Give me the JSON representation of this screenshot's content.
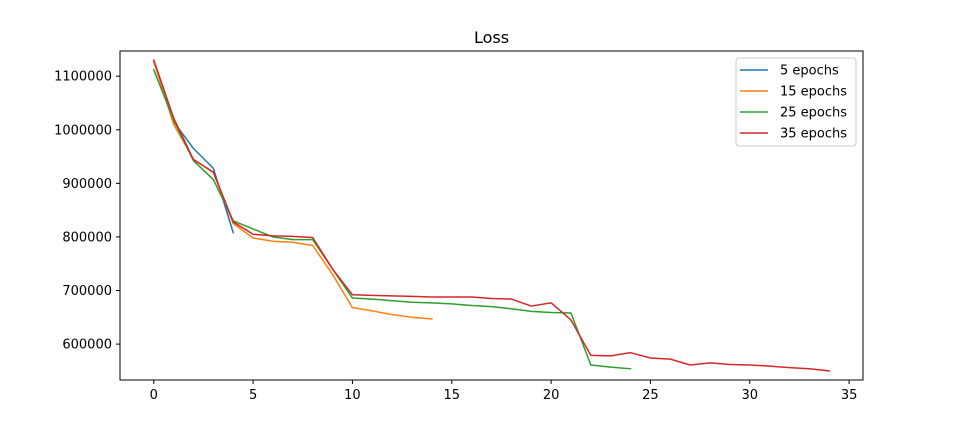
{
  "chart_data": {
    "type": "line",
    "title": "Loss",
    "xlabel": "",
    "ylabel": "",
    "xlim": [
      -1.7,
      35.7
    ],
    "ylim": [
      533000,
      1147000
    ],
    "x_ticks": [
      0,
      5,
      10,
      15,
      20,
      25,
      30,
      35
    ],
    "y_ticks": [
      600000,
      700000,
      800000,
      900000,
      1000000,
      1100000
    ],
    "grid": false,
    "legend_position": "top-right",
    "series": [
      {
        "name": "5 epochs",
        "color": "#1f77b4",
        "x": [
          0,
          1,
          2,
          3,
          4
        ],
        "values": [
          1128000,
          1015000,
          965000,
          928000,
          808000
        ]
      },
      {
        "name": "15 epochs",
        "color": "#ff7f0e",
        "x": [
          0,
          1,
          2,
          3,
          4,
          5,
          6,
          7,
          8,
          9,
          10,
          11,
          12,
          13,
          14
        ],
        "values": [
          1128000,
          1010000,
          945000,
          920000,
          825000,
          798000,
          792000,
          790000,
          784000,
          730000,
          668000,
          662000,
          655000,
          650000,
          647000
        ]
      },
      {
        "name": "25 epochs",
        "color": "#2ca02c",
        "x": [
          0,
          1,
          2,
          3,
          4,
          5,
          6,
          7,
          8,
          9,
          10,
          11,
          12,
          13,
          14,
          15,
          16,
          17,
          18,
          19,
          20,
          21,
          22,
          23,
          24
        ],
        "values": [
          1112000,
          1018000,
          942000,
          907000,
          830000,
          815000,
          800000,
          795000,
          795000,
          740000,
          686000,
          684000,
          681000,
          678000,
          677000,
          675000,
          672000,
          670000,
          666000,
          661000,
          659000,
          658000,
          561000,
          557000,
          554000
        ]
      },
      {
        "name": "35 epochs",
        "color": "#d62728",
        "x": [
          0,
          1,
          2,
          3,
          4,
          5,
          6,
          7,
          8,
          9,
          10,
          11,
          12,
          13,
          14,
          15,
          16,
          17,
          18,
          19,
          20,
          21,
          22,
          23,
          24,
          25,
          26,
          27,
          28,
          29,
          30,
          31,
          32,
          33,
          34
        ],
        "values": [
          1130000,
          1022000,
          944000,
          921000,
          828000,
          805000,
          802000,
          801000,
          799000,
          740000,
          692000,
          691000,
          690000,
          689000,
          688000,
          688000,
          688000,
          685000,
          684000,
          671000,
          677000,
          645000,
          579000,
          578000,
          584000,
          574000,
          572000,
          561000,
          565000,
          562000,
          561000,
          559000,
          556000,
          554000,
          550000
        ]
      }
    ]
  }
}
